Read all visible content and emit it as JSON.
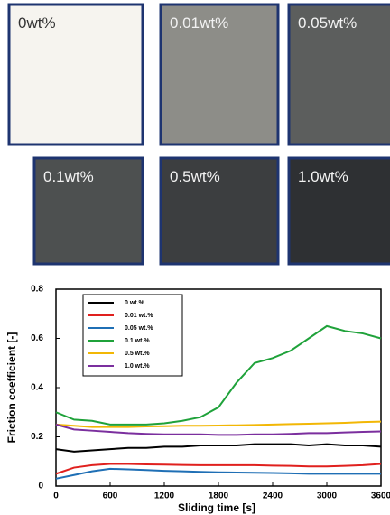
{
  "samples": [
    {
      "label": "0wt%",
      "color": "#f6f4ef",
      "text_color": "#333333"
    },
    {
      "label": "0.01wt%",
      "color": "#8d8d88",
      "text_color": "#f2f2f2"
    },
    {
      "label": "0.05wt%",
      "color": "#5c5e5d",
      "text_color": "#f2f2f2"
    },
    {
      "label": "0.1wt%",
      "color": "#4d5050",
      "text_color": "#f2f2f2"
    },
    {
      "label": "0.5wt%",
      "color": "#3c3e40",
      "text_color": "#f2f2f2"
    },
    {
      "label": "1.0wt%",
      "color": "#2e3033",
      "text_color": "#f2f2f2"
    }
  ],
  "chart_data": {
    "type": "line",
    "x_label": "Sliding time [s]",
    "y_label": "Friction coefficient [-]",
    "x": [
      0,
      200,
      400,
      600,
      800,
      1000,
      1200,
      1400,
      1600,
      1800,
      2000,
      2200,
      2400,
      2600,
      2800,
      3000,
      3200,
      3400,
      3600
    ],
    "series": [
      {
        "name": "0 wt.%",
        "color": "#000000",
        "values": [
          0.15,
          0.14,
          0.145,
          0.15,
          0.155,
          0.155,
          0.16,
          0.16,
          0.165,
          0.165,
          0.165,
          0.17,
          0.17,
          0.17,
          0.165,
          0.17,
          0.165,
          0.165,
          0.16
        ]
      },
      {
        "name": "0.01 wt.%",
        "color": "#e0201e",
        "values": [
          0.05,
          0.075,
          0.085,
          0.09,
          0.09,
          0.088,
          0.087,
          0.086,
          0.085,
          0.085,
          0.085,
          0.085,
          0.083,
          0.082,
          0.08,
          0.08,
          0.082,
          0.085,
          0.09
        ]
      },
      {
        "name": "0.05 wt.%",
        "color": "#1f6fb5",
        "values": [
          0.03,
          0.045,
          0.06,
          0.07,
          0.068,
          0.065,
          0.062,
          0.06,
          0.058,
          0.056,
          0.055,
          0.054,
          0.053,
          0.052,
          0.05,
          0.05,
          0.05,
          0.05,
          0.05
        ]
      },
      {
        "name": "0.1 wt.%",
        "color": "#1fa23a",
        "values": [
          0.3,
          0.27,
          0.265,
          0.25,
          0.25,
          0.25,
          0.255,
          0.265,
          0.28,
          0.32,
          0.42,
          0.5,
          0.52,
          0.55,
          0.6,
          0.65,
          0.63,
          0.62,
          0.6
        ]
      },
      {
        "name": "0.5 wt.%",
        "color": "#f2b705",
        "values": [
          0.25,
          0.245,
          0.24,
          0.24,
          0.24,
          0.242,
          0.243,
          0.245,
          0.245,
          0.246,
          0.247,
          0.248,
          0.25,
          0.252,
          0.253,
          0.255,
          0.257,
          0.26,
          0.262
        ]
      },
      {
        "name": "1.0 wt.%",
        "color": "#7b2f9e",
        "values": [
          0.25,
          0.23,
          0.225,
          0.22,
          0.215,
          0.212,
          0.21,
          0.21,
          0.21,
          0.208,
          0.208,
          0.21,
          0.21,
          0.212,
          0.215,
          0.215,
          0.218,
          0.22,
          0.222
        ]
      }
    ],
    "xlim": [
      0,
      3600
    ],
    "xticks": [
      0,
      600,
      1200,
      1800,
      2400,
      3000,
      3600
    ],
    "ylim": [
      0,
      0.8
    ],
    "yticks": [
      0,
      0.2,
      0.4,
      0.6,
      0.8
    ],
    "legend": "upper left"
  }
}
